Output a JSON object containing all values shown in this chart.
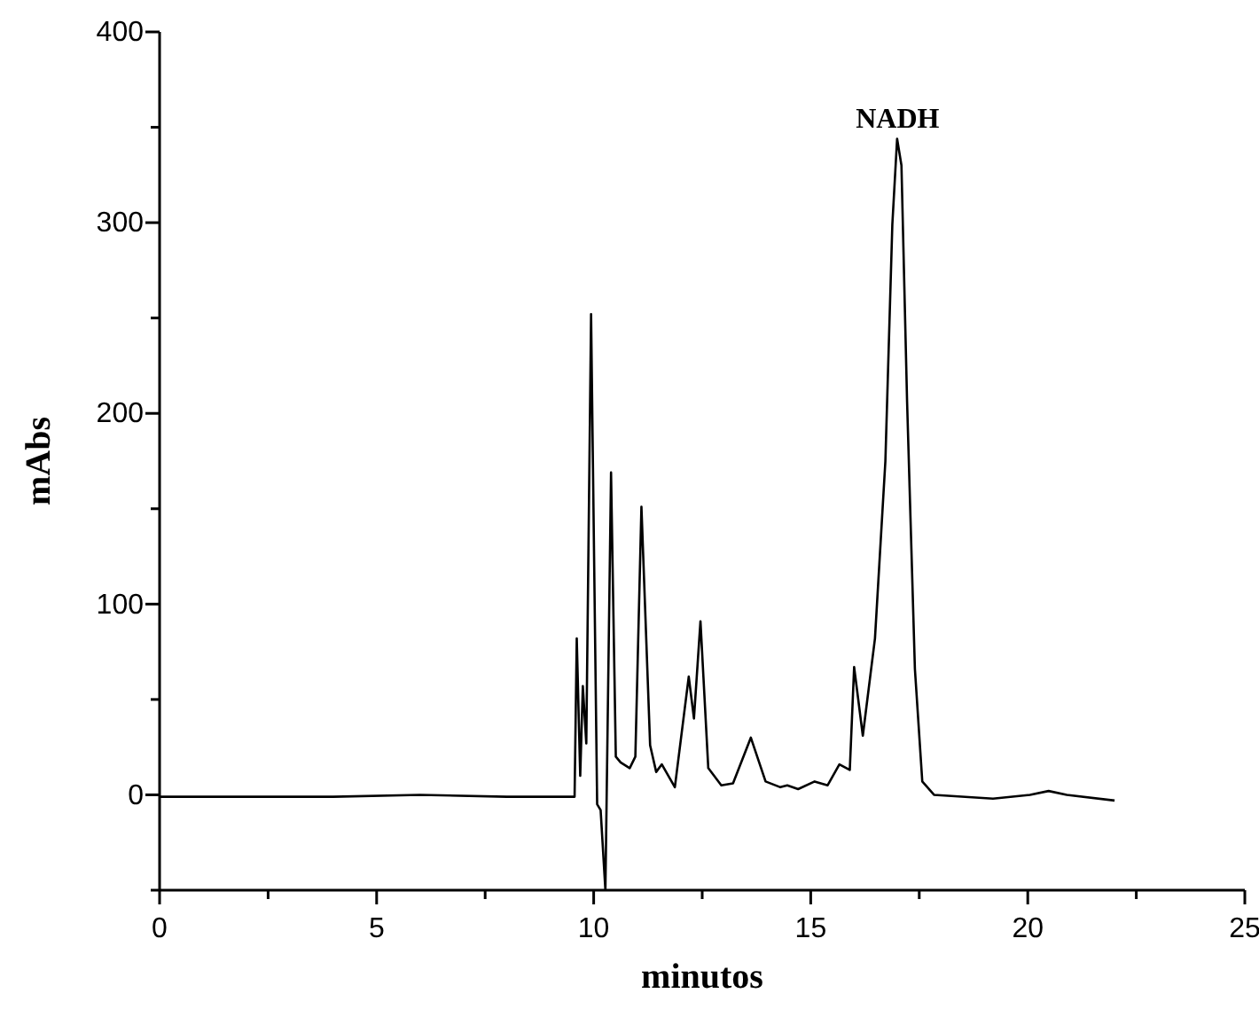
{
  "chart_data": {
    "type": "line",
    "xlabel": "minutos",
    "ylabel": "mAbs",
    "xlim": [
      0,
      25
    ],
    "ylim": [
      -50,
      400
    ],
    "xticks": [
      0,
      {
        "value": 2.5,
        "label": null
      },
      5,
      {
        "value": 7.5,
        "label": null
      },
      10,
      {
        "value": 12.5,
        "label": null
      },
      15,
      {
        "value": 17.5,
        "label": null
      },
      20,
      {
        "value": 22.5,
        "label": null
      },
      25
    ],
    "yticks": [
      {
        "value": -50,
        "label": null
      },
      0,
      {
        "value": 50,
        "label": null
      },
      100,
      {
        "value": 150,
        "label": null
      },
      200,
      {
        "value": 250,
        "label": null
      },
      300,
      {
        "value": 350,
        "label": null
      },
      400
    ],
    "grid": false,
    "marker": "none",
    "line_style": "solid",
    "annotations": [
      {
        "text": "NADH",
        "x": 17.0,
        "y": 344
      }
    ],
    "series": [
      {
        "color": "#000000",
        "x": [
          0,
          2,
          4,
          6,
          8,
          9.56,
          9.61,
          9.69,
          9.75,
          9.83,
          9.94,
          10.08,
          10.16,
          10.27,
          10.4,
          10.51,
          10.62,
          10.83,
          10.96,
          11.1,
          11.3,
          11.44,
          11.57,
          11.87,
          12.19,
          12.31,
          12.46,
          12.64,
          12.94,
          13.21,
          13.62,
          13.96,
          14.3,
          14.46,
          14.71,
          15.09,
          15.39,
          15.66,
          15.9,
          16.0,
          16.2,
          16.48,
          16.72,
          16.88,
          16.99,
          17.09,
          17.22,
          17.4,
          17.57,
          17.84,
          19.2,
          20.05,
          20.48,
          20.9,
          22.0
        ],
        "values": [
          -1,
          -1,
          -1,
          0,
          -1,
          -1,
          82,
          10,
          57,
          27,
          252,
          -5,
          -8,
          -50,
          169,
          20,
          17,
          14,
          20,
          151,
          26,
          12,
          16,
          4,
          62,
          40,
          91,
          14,
          5,
          6,
          30,
          7,
          4,
          5,
          3,
          7,
          5,
          16,
          13,
          67,
          31,
          82,
          175,
          299,
          344,
          330,
          206,
          66,
          7,
          0,
          -2,
          0,
          2,
          0,
          -3
        ]
      }
    ]
  }
}
